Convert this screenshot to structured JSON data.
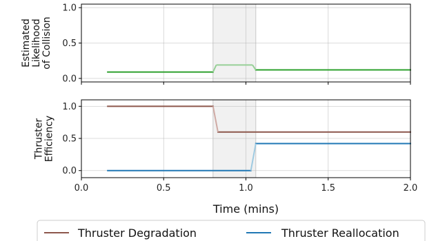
{
  "chart_data": [
    {
      "type": "line",
      "ylabel_lines": [
        "Estimated",
        "Likelihood",
        "of Collision"
      ],
      "xlim": [
        0,
        2.0
      ],
      "ylim": [
        -0.05,
        1.05
      ],
      "yticks": [
        0.0,
        0.5,
        1.0
      ],
      "ytick_labels": [
        "0.0",
        "0.5",
        "1.0"
      ],
      "xticks": [
        0,
        0.5,
        1.0,
        1.5,
        2.0
      ],
      "grid": true,
      "highlight_span": [
        0.8,
        1.06
      ],
      "series": [
        {
          "color": "#2ca02c",
          "faded_color": "#97d097",
          "x": [
            0.16,
            0.8,
            0.82,
            1.04,
            1.06,
            2.0
          ],
          "y": [
            0.09,
            0.09,
            0.19,
            0.19,
            0.12,
            0.12
          ]
        }
      ]
    },
    {
      "type": "line",
      "ylabel_lines": [
        "Thruster",
        "Efficiency"
      ],
      "xlim": [
        0,
        2.0
      ],
      "ylim": [
        -0.11,
        1.1
      ],
      "yticks": [
        0.0,
        0.5,
        1.0
      ],
      "ytick_labels": [
        "0.0",
        "0.5",
        "1.0"
      ],
      "xticks": [
        0,
        0.5,
        1.0,
        1.5,
        2.0
      ],
      "xtick_labels": [
        "0.0",
        "0.5",
        "1.0",
        "1.5",
        "2.0"
      ],
      "xlabel": "Time (mins)",
      "grid": true,
      "highlight_span": [
        0.8,
        1.06
      ],
      "series": [
        {
          "name": "Thruster Degradation",
          "color": "#8c564b",
          "faded_color": "#cfaaa4",
          "x": [
            0.16,
            0.8,
            0.83,
            2.0
          ],
          "y": [
            1.0,
            1.0,
            0.6,
            0.6
          ]
        },
        {
          "name": "Thruster Reallocation",
          "color": "#1f77b4",
          "faded_color": "#9ecae1",
          "x": [
            0.16,
            1.03,
            1.06,
            2.0
          ],
          "y": [
            0.0,
            0.0,
            0.42,
            0.42
          ]
        }
      ],
      "legend_position": "bottom-center"
    }
  ]
}
